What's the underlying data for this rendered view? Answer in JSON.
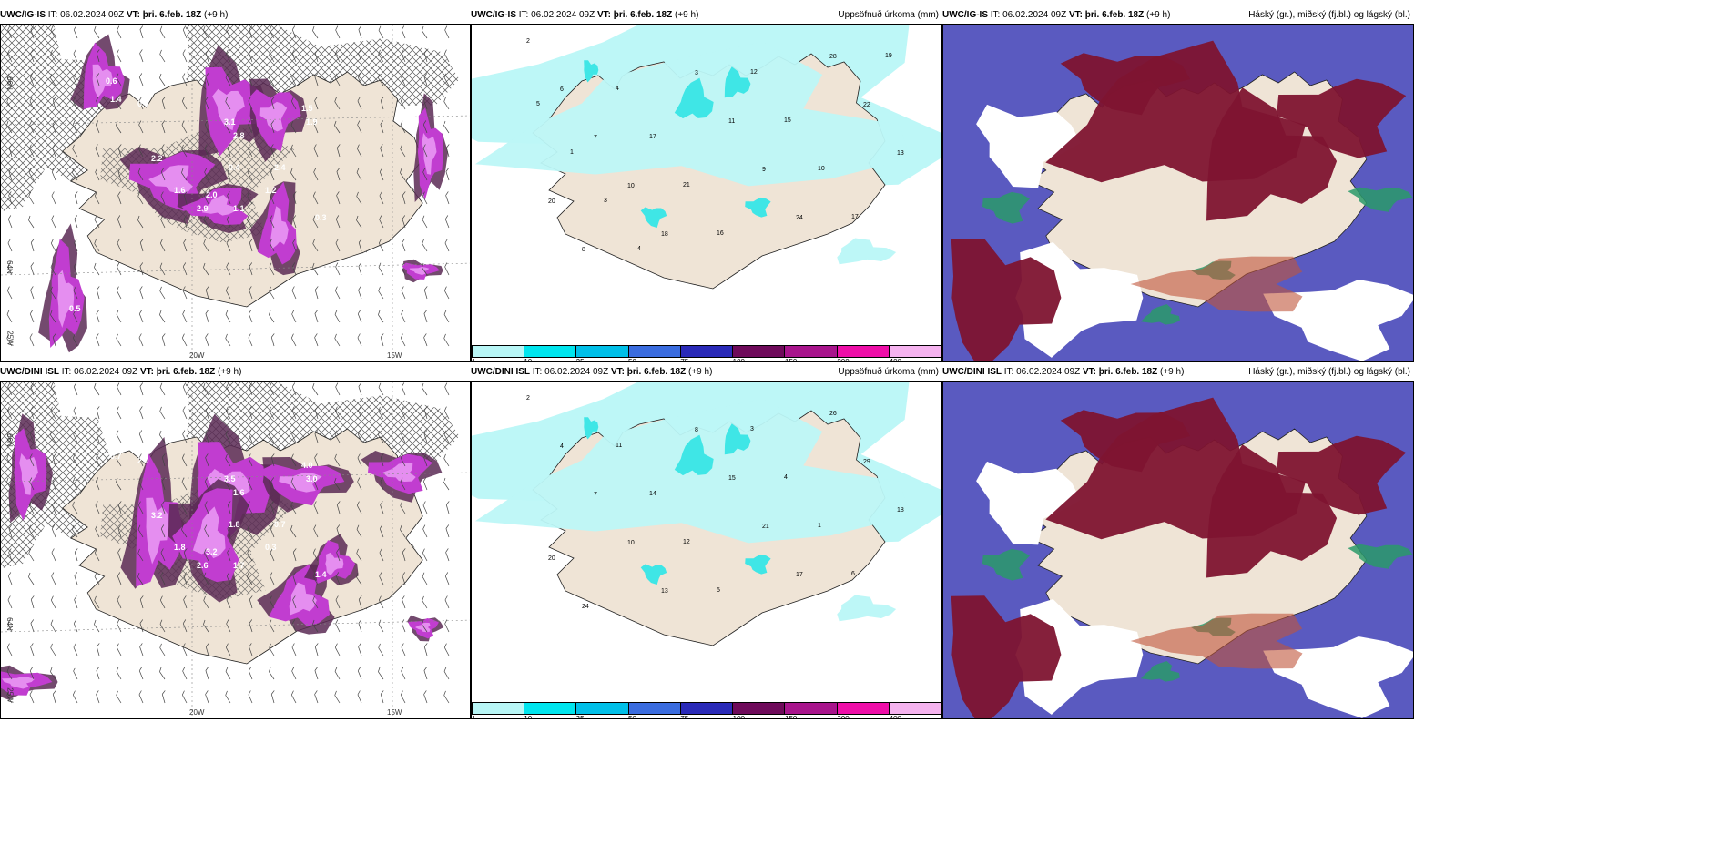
{
  "rows": [
    {
      "wind": {
        "model": "UWC/IG-IS",
        "it_label": "IT:",
        "it": "06.02.2024 09Z",
        "vt_label": "VT:",
        "vt": "þri. 6.feb. 18Z",
        "lead": "(+9 h)",
        "lon_labels": [
          "20W",
          "15W"
        ],
        "lat_labels": [
          "66N",
          "64N"
        ],
        "edge_label": "25W"
      },
      "precip": {
        "model": "UWC/IG-IS",
        "it_label": "IT:",
        "it": "06.02.2024 09Z",
        "vt_label": "VT:",
        "vt": "þri. 6.feb. 18Z",
        "lead": "(+9 h)",
        "title": "Uppsöfnuð úrkoma (mm)",
        "lat_labels": [
          "66N",
          "64N"
        ]
      },
      "cloud": {
        "model": "UWC/IG-IS",
        "it_label": "IT:",
        "it": "06.02.2024 09Z",
        "vt_label": "VT:",
        "vt": "þri. 6.feb. 18Z",
        "lead": "(+9 h)",
        "title": "Háský (gr.), miðský (fj.bl.) og lágský (bl.)"
      }
    },
    {
      "wind": {
        "model": "UWC/DINI ISL",
        "it_label": "IT:",
        "it": "06.02.2024 09Z",
        "vt_label": "VT:",
        "vt": "þri. 6.feb. 18Z",
        "lead": "(+9 h)",
        "lon_labels": [
          "20W",
          "15W"
        ],
        "lat_labels": [
          "66N",
          "64N"
        ],
        "edge_label": "25W"
      },
      "precip": {
        "model": "UWC/DINI ISL",
        "it_label": "IT:",
        "it": "06.02.2024 09Z",
        "vt_label": "VT:",
        "vt": "þri. 6.feb. 18Z",
        "lead": "(+9 h)",
        "title": "Uppsöfnuð úrkoma (mm)",
        "lat_labels": [
          "66N",
          "64N"
        ]
      },
      "cloud": {
        "model": "UWC/DINI ISL",
        "it_label": "IT:",
        "it": "06.02.2024 09Z",
        "vt_label": "VT:",
        "vt": "þri. 6.feb. 18Z",
        "lead": "(+9 h)",
        "title": "Háský (gr.), miðský (fj.bl.) og lágský (bl.)"
      }
    }
  ],
  "colorbar": {
    "ticks": [
      "1",
      "10",
      "25",
      "50",
      "75",
      "100",
      "150",
      "200",
      "400"
    ],
    "colors": [
      "#b8f6f6",
      "#00e5ee",
      "#00bfe8",
      "#3a6cdf",
      "#2a2ab8",
      "#6e0a5a",
      "#a8148c",
      "#ee0ea8",
      "#f5b3ef"
    ]
  },
  "colors": {
    "land": "#efe4d6",
    "precip_light": "#bdf7f7",
    "precip_mid": "#3fe6e6",
    "snow": "#c13dd0",
    "snow_light": "#e58ef0",
    "snow_dark": "#5a2a55",
    "high_cloud": "#7e1430",
    "mid_cloud": "#5a5ac0",
    "low_cloud": "#2a9a6a"
  },
  "wind_values_top": [
    "0.6",
    "1.4",
    "0.9",
    "2.2",
    "3.1",
    "2.8",
    "1.5",
    "1.9",
    "2.0",
    "1.6",
    "2.9",
    "1.1",
    "1.2",
    "2.4",
    "0.4",
    "0.5",
    "0.3",
    "0.9"
  ],
  "wind_values_bottom": [
    "0.3",
    "0.7",
    "2.0",
    "3.2",
    "3.5",
    "1.6",
    "4.0",
    "3.0",
    "3.2",
    "1.8",
    "2.6",
    "1.7",
    "0.3",
    "0.7",
    "1.8",
    "2.1",
    "1.4",
    "0.5"
  ],
  "precip_values_top": [
    "2",
    "6",
    "7",
    "10",
    "18",
    "3",
    "11",
    "9",
    "24",
    "28",
    "22",
    "13",
    "20",
    "8",
    "4",
    "17",
    "21",
    "16",
    "12",
    "15",
    "10",
    "17",
    "19",
    "5",
    "1",
    "3",
    "4"
  ],
  "precip_values_bottom": [
    "2",
    "4",
    "7",
    "10",
    "13",
    "8",
    "15",
    "21",
    "17",
    "26",
    "29",
    "18",
    "20",
    "24",
    "11",
    "14",
    "12",
    "5",
    "3",
    "4",
    "1",
    "6"
  ]
}
